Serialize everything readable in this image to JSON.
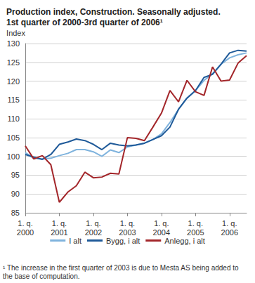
{
  "chart_data": {
    "type": "line",
    "title": "Production index, Construction. Seasonally adjusted.\n1st quarter of 2000-3rd quarter of 2006¹",
    "y_label": "Index",
    "note": "¹ The increase in the first quarter of 2003 is due to Mesta AS being added to the base of computation.",
    "categories": [
      "1. q.\n2000",
      null,
      null,
      null,
      "1. q.\n2001",
      null,
      null,
      null,
      "1. q.\n2002",
      null,
      null,
      null,
      "1. q.\n2003",
      null,
      null,
      null,
      "1. q.\n2004",
      null,
      null,
      null,
      "1. q.\n2005",
      null,
      null,
      null,
      "1. q.\n2006",
      null,
      null
    ],
    "series": [
      {
        "name": "I alt",
        "color": "#7fb3dd",
        "values": [
          101,
          99.5,
          99.3,
          99.5,
          100.2,
          100.8,
          101.8,
          101.8,
          101.2,
          100.0,
          101.7,
          101.0,
          102.5,
          103,
          103.5,
          104.5,
          106,
          109,
          112.5,
          115.5,
          117.5,
          120.2,
          122,
          124.5,
          126.2,
          127,
          127.5
        ]
      },
      {
        "name": "Bygg, i alt",
        "color": "#1f5a99",
        "values": [
          100.5,
          99.8,
          99.2,
          100.5,
          103.2,
          103.8,
          104.6,
          104.2,
          103.2,
          101.8,
          103.5,
          103.0,
          102.8,
          103.0,
          103.5,
          104.5,
          105.5,
          107.8,
          112.5,
          115.5,
          117.5,
          121,
          121.8,
          124.5,
          127.5,
          128.2,
          128
        ]
      },
      {
        "name": "Anlegg, i alt",
        "color": "#a3262a",
        "values": [
          102.8,
          99.3,
          100.2,
          97.8,
          87.8,
          90.5,
          92.2,
          95.8,
          94.3,
          94.5,
          95.5,
          95.3,
          105,
          104.8,
          104.2,
          107.8,
          111.5,
          117.5,
          114.5,
          120.2,
          117.2,
          116.2,
          123.8,
          120.0,
          120.3,
          124.8,
          126.8
        ]
      }
    ],
    "ylim": [
      85,
      130
    ],
    "yticks": [
      85,
      90,
      95,
      100,
      105,
      110,
      115,
      120,
      125,
      130
    ],
    "grid": true,
    "legend": "bottom"
  }
}
